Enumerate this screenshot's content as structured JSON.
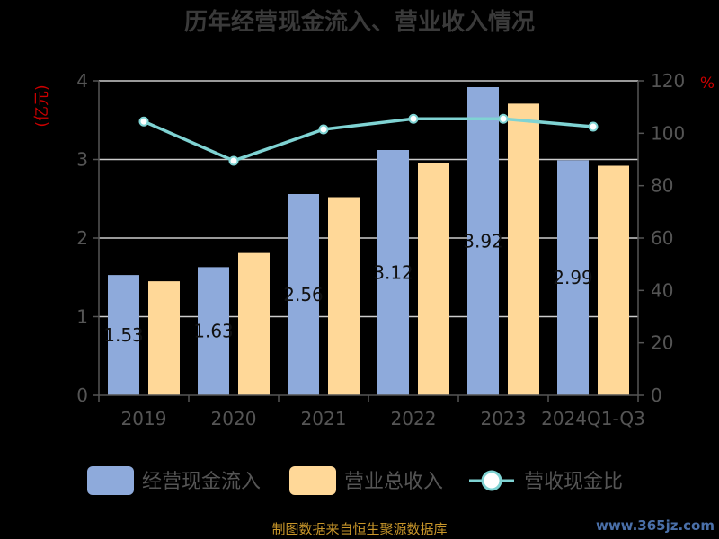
{
  "chart_data": {
    "type": "bar",
    "title": "历年经营现金流入、营业收入情况",
    "categories": [
      "2019",
      "2020",
      "2021",
      "2022",
      "2023",
      "2024Q1-Q3"
    ],
    "series": [
      {
        "name": "经营现金流入",
        "type": "bar",
        "axis": "left",
        "color": "#8eaadb",
        "values": [
          1.53,
          1.63,
          2.56,
          3.12,
          3.92,
          2.99
        ]
      },
      {
        "name": "营业总收入",
        "type": "bar",
        "axis": "left",
        "color": "#ffd898",
        "values": [
          1.45,
          1.81,
          2.52,
          2.96,
          3.71,
          2.92
        ]
      },
      {
        "name": "营收现金比",
        "type": "line",
        "axis": "right",
        "color": "#7fd3d3",
        "values": [
          104.5,
          89.5,
          101.5,
          105.5,
          105.5,
          102.5
        ]
      }
    ],
    "data_labels": [
      "1.53",
      "1.63",
      "2.56",
      "3.12",
      "3.92",
      "2.99"
    ],
    "ylabel_left": "(亿元)",
    "ylabel_right": "%",
    "ylim_left": [
      0,
      4
    ],
    "yticks_left": [
      0,
      1,
      2,
      3,
      4
    ],
    "ylim_right": [
      0,
      120
    ],
    "yticks_right": [
      0,
      20,
      40,
      60,
      80,
      100,
      120
    ],
    "grid": true,
    "legend_position": "bottom"
  },
  "footer": {
    "source": "制图数据来自恒生聚源数据库",
    "watermark": "www.365jz.com"
  },
  "colors": {
    "background": "#000000",
    "bar1": "#8eaadb",
    "bar2": "#ffd898",
    "line": "#7fd3d3",
    "grid": "#cccccc",
    "axis": "#555555",
    "unit": "#cc0000"
  }
}
